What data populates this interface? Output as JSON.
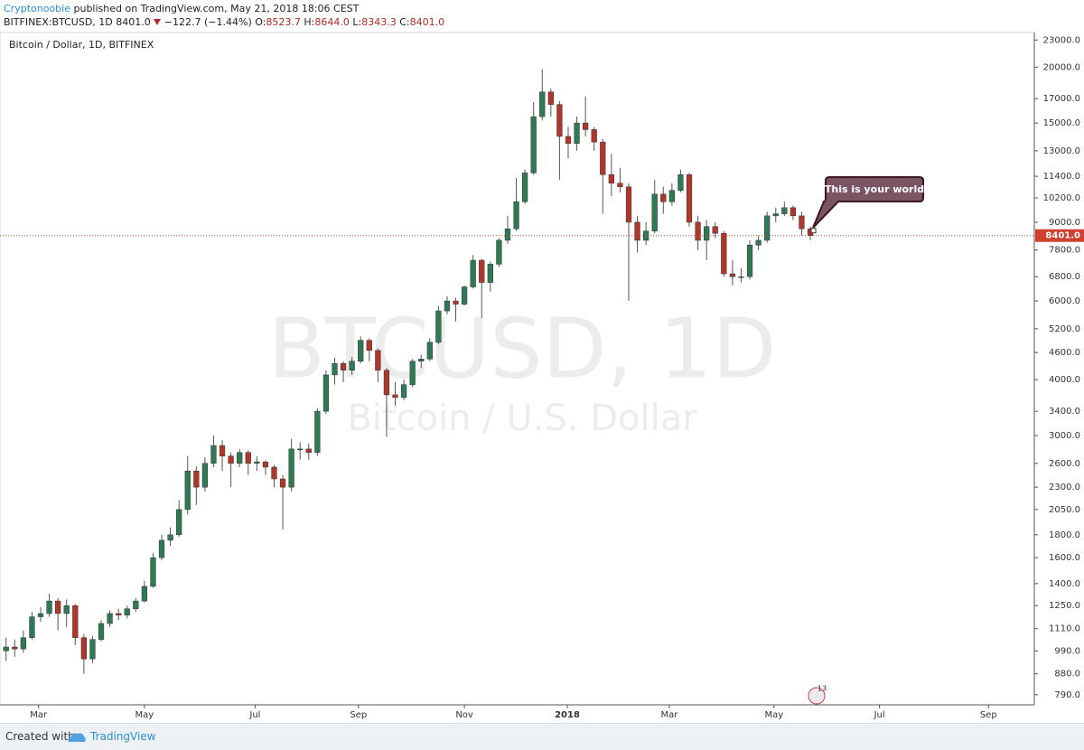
{
  "header": {
    "author": "Cryptonoobie",
    "published": "published on TradingView.com, May 21, 2018 18:06 CEST",
    "symbol": "BITFINEX:BTCUSD, 1D",
    "last": "8401.0",
    "change": "−122.7 (−1.44%)",
    "open_label": "O:",
    "open": "8523.7",
    "high_label": "H:",
    "high": "8644.0",
    "low_label": "L:",
    "low": "8343.3",
    "close_label": "C:",
    "close": "8401.0"
  },
  "chart_data": {
    "type": "candlestick",
    "title": "Bitcoin / Dollar, 1D, BITFINEX",
    "watermark": "BTCUSD, 1D",
    "watermark_subtitle": "Bitcoin / U.S. Dollar",
    "annotation": "This is your world",
    "event_marker": "13",
    "up_color": "#2f7a55",
    "down_color": "#b0362b",
    "wick_color": "#555555",
    "log_scale": true,
    "categories": [
      null,
      null,
      null,
      null,
      null,
      null,
      null,
      null,
      null,
      null,
      null,
      null,
      null,
      null,
      null,
      null,
      null,
      null,
      null,
      null,
      null,
      null,
      null,
      null,
      null,
      null,
      null,
      null,
      null,
      null,
      null,
      null,
      null,
      null,
      null,
      null,
      null,
      null,
      null,
      null,
      null,
      null,
      null,
      null,
      null,
      null,
      null,
      null,
      null,
      null,
      null,
      null,
      null,
      null,
      null,
      null,
      null,
      null,
      null,
      null,
      null,
      null,
      null,
      null,
      null,
      null,
      null,
      null,
      null,
      null,
      null,
      null,
      null,
      null,
      null,
      null,
      null,
      null,
      null,
      null,
      null,
      null,
      null,
      null,
      null,
      null,
      null,
      null,
      null,
      null,
      null,
      null,
      null,
      null
    ],
    "open": [
      990,
      1010,
      1000,
      1060,
      1180,
      1200,
      1280,
      1200,
      1250,
      1060,
      950,
      1050,
      1140,
      1200,
      1190,
      1230,
      1280,
      1380,
      1600,
      1750,
      1800,
      2050,
      2500,
      2300,
      2600,
      2850,
      2700,
      2600,
      2750,
      2600,
      2620,
      2550,
      2400,
      2300,
      2800,
      2800,
      2750,
      3400,
      4100,
      4350,
      4200,
      4400,
      4900,
      4650,
      4200,
      3700,
      3650,
      3900,
      4400,
      4450,
      4850,
      5700,
      6000,
      5900,
      6450,
      7400,
      6600,
      7250,
      8200,
      8700,
      10000,
      11600,
      15500,
      17600,
      16500,
      14000,
      13500,
      15000,
      14500,
      13600,
      11500,
      11000,
      10800,
      9000,
      8200,
      8600,
      10400,
      10000,
      10600,
      11500,
      9000,
      8200,
      8800,
      8500,
      6900,
      6800,
      6800,
      8000,
      8200,
      9300,
      9400,
      9700,
      9300,
      8700
    ],
    "high": [
      1060,
      1050,
      1100,
      1210,
      1240,
      1330,
      1300,
      1290,
      1260,
      1080,
      1070,
      1160,
      1220,
      1230,
      1250,
      1300,
      1420,
      1640,
      1800,
      1870,
      2150,
      2700,
      2560,
      2680,
      3000,
      2930,
      2750,
      2800,
      2780,
      2700,
      2640,
      2580,
      2450,
      2950,
      2900,
      2880,
      3450,
      4200,
      4480,
      4400,
      4500,
      5000,
      4950,
      4700,
      4250,
      3950,
      4000,
      4450,
      4550,
      4950,
      5850,
      6150,
      6100,
      6500,
      7600,
      7450,
      7350,
      8300,
      9300,
      11300,
      11800,
      16700,
      19800,
      17900,
      16800,
      14700,
      15500,
      17200,
      14700,
      13800,
      12800,
      11900,
      11000,
      9300,
      9000,
      11200,
      10800,
      11000,
      11800,
      11600,
      9300,
      9100,
      9000,
      8600,
      7400,
      7100,
      8200,
      8400,
      9500,
      9700,
      10000,
      9800,
      9500,
      8800
    ],
    "low": [
      940,
      960,
      980,
      1050,
      1150,
      1180,
      1100,
      1120,
      1020,
      880,
      930,
      1040,
      1120,
      1160,
      1170,
      1210,
      1270,
      1370,
      1580,
      1700,
      1780,
      2000,
      2100,
      2250,
      2550,
      2500,
      2300,
      2550,
      2450,
      2500,
      2450,
      2300,
      1850,
      2250,
      2650,
      2650,
      2700,
      3350,
      3900,
      3950,
      4100,
      4350,
      4400,
      3950,
      2980,
      3500,
      3600,
      3850,
      4250,
      4400,
      4800,
      5600,
      5400,
      5850,
      6400,
      5500,
      6300,
      7150,
      8050,
      8600,
      9900,
      11500,
      15200,
      15500,
      11200,
      12500,
      13000,
      14000,
      13000,
      9400,
      10300,
      10500,
      6000,
      7700,
      8000,
      8500,
      9400,
      9800,
      10500,
      8800,
      7800,
      7400,
      8300,
      6800,
      6500,
      6600,
      6700,
      7800,
      8100,
      9000,
      9300,
      9100,
      8400,
      8200
    ],
    "close": [
      1010,
      1000,
      1060,
      1180,
      1200,
      1280,
      1200,
      1250,
      1060,
      950,
      1050,
      1140,
      1200,
      1190,
      1230,
      1280,
      1380,
      1600,
      1750,
      1800,
      2050,
      2500,
      2300,
      2600,
      2850,
      2700,
      2600,
      2750,
      2600,
      2620,
      2550,
      2400,
      2300,
      2800,
      2800,
      2750,
      3400,
      4100,
      4350,
      4200,
      4400,
      4900,
      4650,
      4200,
      3700,
      3650,
      3900,
      4400,
      4450,
      4850,
      5700,
      6000,
      5900,
      6450,
      7400,
      6600,
      7250,
      8200,
      8700,
      10000,
      11600,
      15500,
      17600,
      16500,
      14000,
      13500,
      15000,
      14500,
      13600,
      11500,
      11000,
      10800,
      9000,
      8200,
      8600,
      10400,
      10000,
      10600,
      11500,
      9000,
      8200,
      8800,
      8500,
      6900,
      6800,
      6800,
      8000,
      8200,
      9300,
      9400,
      9700,
      9300,
      8700,
      8401
    ],
    "last_price": {
      "value": 8401,
      "label": "8401.0",
      "color": "#d0402f"
    },
    "xlim": [
      -0.7,
      118.9
    ],
    "xticks": [
      {
        "value": 3.76,
        "label": "Mar"
      },
      {
        "value": 16.0,
        "label": "May"
      },
      {
        "value": 28.8,
        "label": "Jul"
      },
      {
        "value": 40.75,
        "label": "Sep"
      },
      {
        "value": 53.0,
        "label": "Nov"
      },
      {
        "value": 64.9,
        "label": "2018"
      },
      {
        "value": 76.7,
        "label": "Mar"
      },
      {
        "value": 88.8,
        "label": "May"
      },
      {
        "value": 101.0,
        "label": "Jul"
      },
      {
        "value": 113.6,
        "label": "Sep"
      }
    ],
    "ylim": [
      750,
      23900
    ],
    "yticks": [
      {
        "value": 790,
        "label": "790.0"
      },
      {
        "value": 880,
        "label": "880.0"
      },
      {
        "value": 990,
        "label": "990.0"
      },
      {
        "value": 1110,
        "label": "1110.0"
      },
      {
        "value": 1250,
        "label": "1250.0"
      },
      {
        "value": 1400,
        "label": "1400.0"
      },
      {
        "value": 1600,
        "label": "1600.0"
      },
      {
        "value": 1800,
        "label": "1800.0"
      },
      {
        "value": 2050,
        "label": "2050.0"
      },
      {
        "value": 2300,
        "label": "2300.0"
      },
      {
        "value": 2600,
        "label": "2600.0"
      },
      {
        "value": 3000,
        "label": "3000.0"
      },
      {
        "value": 3400,
        "label": "3400.0"
      },
      {
        "value": 4000,
        "label": "4000.0"
      },
      {
        "value": 4600,
        "label": "4600.0"
      },
      {
        "value": 5200,
        "label": "5200.0"
      },
      {
        "value": 6000,
        "label": "6000.0"
      },
      {
        "value": 6800,
        "label": "6800.0"
      },
      {
        "value": 7800,
        "label": "7800.0"
      },
      {
        "value": 9000,
        "label": "9000.0"
      },
      {
        "value": 10200,
        "label": "10200.0"
      },
      {
        "value": 11400,
        "label": "11400.0"
      },
      {
        "value": 13000,
        "label": "13000.0"
      },
      {
        "value": 15000,
        "label": "15000.0"
      },
      {
        "value": 17000,
        "label": "17000.0"
      },
      {
        "value": 20000,
        "label": "20000.0"
      },
      {
        "value": 23000,
        "label": "23000.0"
      }
    ]
  },
  "footer": {
    "created": "Created with",
    "brand": "TradingView"
  }
}
